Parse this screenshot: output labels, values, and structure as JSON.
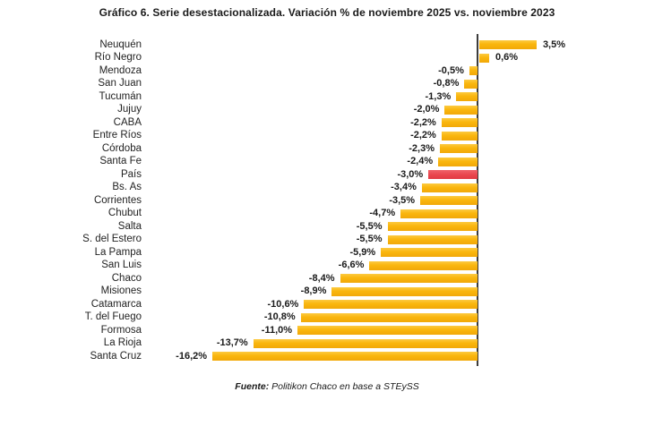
{
  "title": "Gráfico 6. Serie desestacionalizada. Variación % de noviembre 2025 vs. noviembre 2023",
  "source": {
    "prefix": "Fuente:",
    "text": " Politikon Chaco en base a STEySS"
  },
  "colors": {
    "bar_yellow": "#FAB60D",
    "bar_highlight_red": "#E9454D",
    "axis_line": "#3C3C3C",
    "text": "#1A1A1A"
  },
  "chart_data": {
    "type": "bar",
    "orientation": "horizontal",
    "title": "Gráfico 6. Serie desestacionalizada. Variación % de noviembre 2025 vs. noviembre 2023",
    "xlabel": "",
    "ylabel": "",
    "unit": "%",
    "xlim": [
      -17,
      4.5
    ],
    "grid": false,
    "legend": false,
    "highlight_category": "País",
    "categories": [
      "Neuquén",
      "Río Negro",
      "Mendoza",
      "San Juan",
      "Tucumán",
      "Jujuy",
      "CABA",
      "Entre Ríos",
      "Córdoba",
      "Santa Fe",
      "País",
      "Bs. As",
      "Corrientes",
      "Chubut",
      "Salta",
      "S. del Estero",
      "La Pampa",
      "San Luis",
      "Chaco",
      "Misiones",
      "Catamarca",
      "T. del Fuego",
      "Formosa",
      "La Rioja",
      "Santa Cruz"
    ],
    "values": [
      3.5,
      0.6,
      -0.5,
      -0.8,
      -1.3,
      -2.0,
      -2.2,
      -2.2,
      -2.3,
      -2.4,
      -3.0,
      -3.4,
      -3.5,
      -4.7,
      -5.5,
      -5.5,
      -5.9,
      -6.6,
      -8.4,
      -8.9,
      -10.6,
      -10.8,
      -11.0,
      -13.7,
      -16.2
    ],
    "labels": [
      "3,5%",
      "0,6%",
      "-0,5%",
      "-0,8%",
      "-1,3%",
      "-2,0%",
      "-2,2%",
      "-2,2%",
      "-2,3%",
      "-2,4%",
      "-3,0%",
      "-3,4%",
      "-3,5%",
      "-4,7%",
      "-5,5%",
      "-5,5%",
      "-5,9%",
      "-6,6%",
      "-8,4%",
      "-8,9%",
      "-10,6%",
      "-10,8%",
      "-11,0%",
      "-13,7%",
      "-16,2%"
    ],
    "source": "Politikon Chaco en base a STEySS"
  }
}
